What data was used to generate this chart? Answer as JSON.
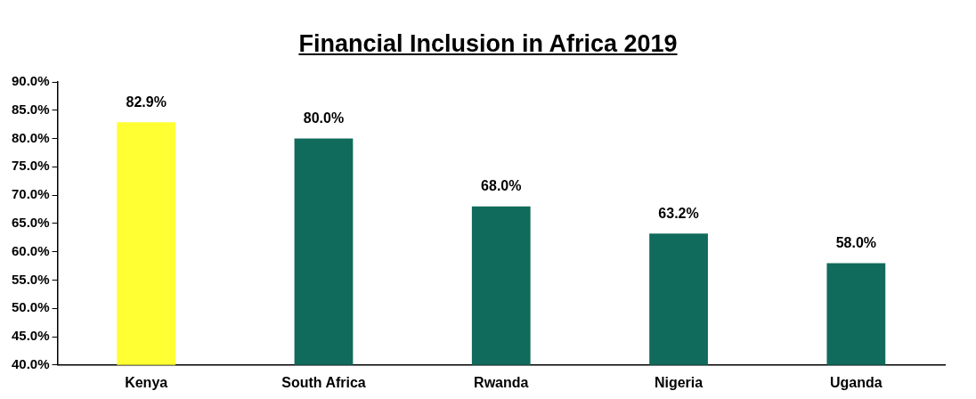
{
  "chart_data": {
    "type": "bar",
    "title": "Financial Inclusion in Africa 2019",
    "categories": [
      "Kenya",
      "South Africa",
      "Rwanda",
      "Nigeria",
      "Uganda"
    ],
    "values": [
      82.9,
      80.0,
      68.0,
      63.2,
      58.0
    ],
    "colors": [
      "#ffff33",
      "#116b5c",
      "#116b5c",
      "#116b5c",
      "#116b5c"
    ],
    "value_labels": [
      "82.9%",
      "80.0%",
      "68.0%",
      "63.2%",
      "58.0%"
    ],
    "ylim": [
      40,
      90
    ],
    "yticks": [
      {
        "value": 40,
        "label": "40.0%"
      },
      {
        "value": 45,
        "label": "45.0%"
      },
      {
        "value": 50,
        "label": "50.0%"
      },
      {
        "value": 55,
        "label": "55.0%"
      },
      {
        "value": 60,
        "label": "60.0%"
      },
      {
        "value": 65,
        "label": "65.0%"
      },
      {
        "value": 70,
        "label": "70.0%"
      },
      {
        "value": 75,
        "label": "75.0%"
      },
      {
        "value": 80,
        "label": "80.0%"
      },
      {
        "value": 85,
        "label": "85.0%"
      },
      {
        "value": 90,
        "label": "90.0%"
      }
    ],
    "grid": false,
    "legend": false
  }
}
